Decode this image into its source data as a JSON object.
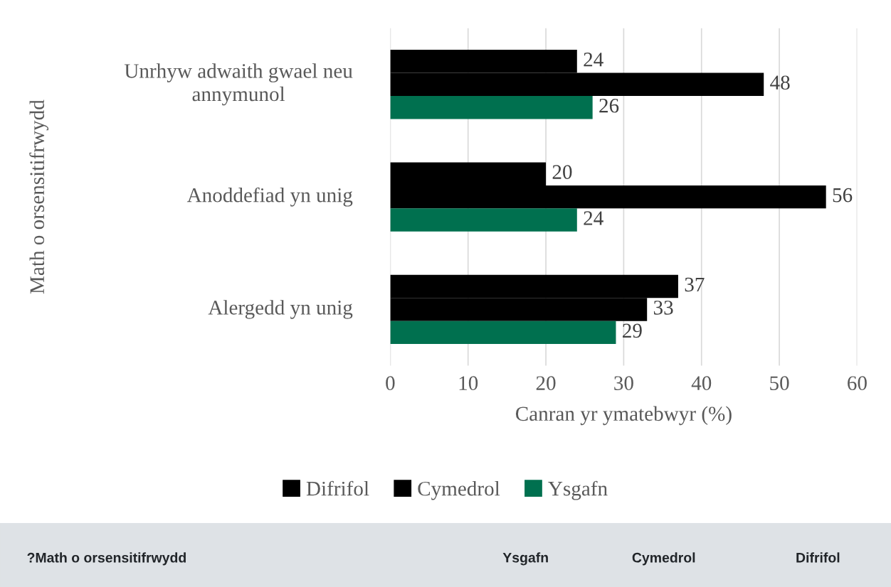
{
  "chart_data": {
    "type": "bar",
    "orientation": "horizontal",
    "ylabel": "Math o orsensitifrwydd",
    "xlabel": "Canran yr ymatebwyr (%)",
    "categories": [
      "Unrhyw adwaith gwael neu annymunol",
      "Anoddefiad yn unig",
      "Alergedd yn unig"
    ],
    "series": [
      {
        "name": "Difrifol",
        "color": "#000000",
        "values": [
          24,
          20,
          37
        ]
      },
      {
        "name": "Cymedrol",
        "color": "#000000",
        "values": [
          48,
          56,
          33
        ]
      },
      {
        "name": "Ysgafn",
        "color": "#00704f",
        "values": [
          26,
          24,
          29
        ]
      }
    ],
    "xlim": [
      0,
      60
    ],
    "xticks": [
      0,
      10,
      20,
      30,
      40,
      50,
      60
    ],
    "grid": "x",
    "data_labels": true,
    "legend": "bottom",
    "annotations": [
      "?Math o orsensitifrwydd",
      "Ysgafn",
      "Cymedrol",
      "Difrifol"
    ]
  }
}
